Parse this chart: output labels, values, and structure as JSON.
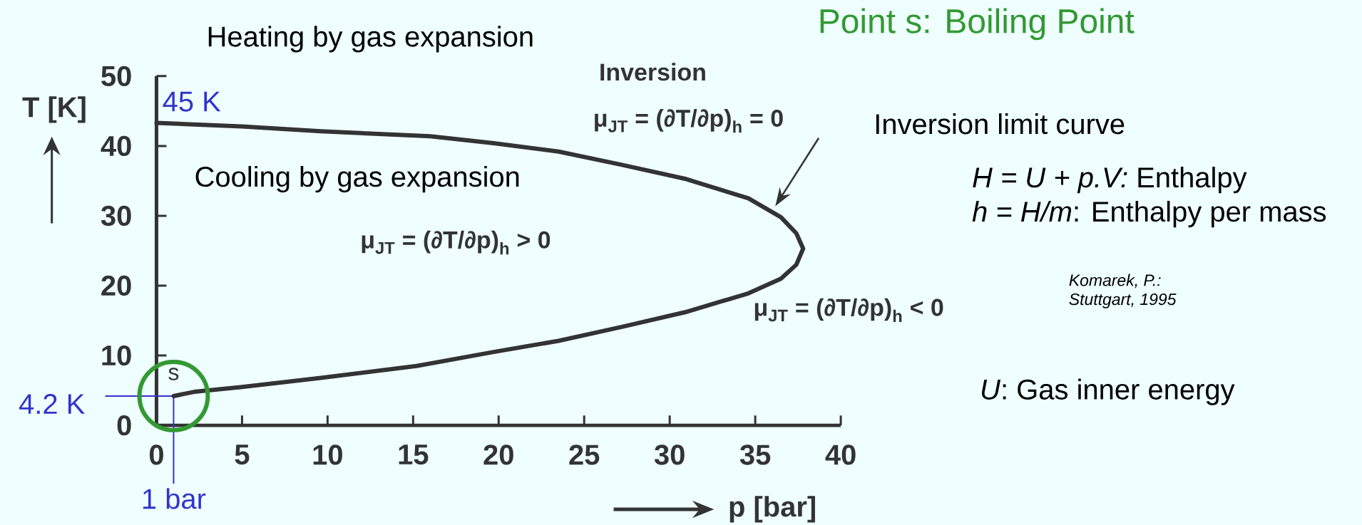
{
  "chart_data": {
    "type": "line",
    "title": "Point s: Boiling Point",
    "xlabel": "p [bar]",
    "ylabel": "T [K]",
    "xlim": [
      0,
      40
    ],
    "ylim": [
      0,
      50
    ],
    "xticks": [
      0,
      5,
      10,
      15,
      20,
      25,
      30,
      35,
      40
    ],
    "yticks": [
      0,
      10,
      20,
      30,
      40,
      50
    ],
    "series": [
      {
        "color": "#333333",
        "x": [
          0,
          5,
          9.6,
          16,
          19.7,
          23.5,
          27.2,
          30.9,
          34.6,
          36.5,
          37.4,
          37.8,
          37.4,
          36.5,
          34.6,
          30.9,
          27.2,
          23.5,
          19.7,
          15.2,
          9.6,
          5,
          2.2,
          1
        ],
        "values": [
          43.3,
          42.8,
          42.1,
          41.4,
          40.4,
          39.2,
          37.3,
          35.3,
          32.5,
          29.8,
          27.5,
          25.3,
          23.0,
          21.0,
          18.9,
          16.2,
          14.1,
          12.1,
          10.5,
          8.5,
          6.8,
          5.5,
          4.8,
          4.2
        ]
      },
      {
        "type": "scatter",
        "name": "s",
        "color": "#339933",
        "marker": "circle",
        "x": [
          1
        ],
        "values": [
          4.2
        ]
      }
    ],
    "ref_lines": [
      {
        "axis": "y",
        "value": 4.2,
        "label": "4.2 K",
        "color": "#3333cc"
      },
      {
        "axis": "x",
        "value": 1,
        "label": "1 bar",
        "color": "#3333cc"
      }
    ],
    "annotations": [
      "Heating by gas expansion",
      "Cooling by gas expansion",
      "Inversion",
      "μ$_{JT}$ = (∂T/∂p)$_{h}$ = 0",
      "Inversion limit curve",
      "μ$_{JT}$ = (∂T/∂p)$_{h}$ > 0",
      "μ$_{JT}$ = (∂T/∂p)$_{h}$ < 0",
      "*H = U + p.V:* Enthalpy",
      "*h = H/m*: Enthalpy per mass",
      "Komarek, P.:",
      "Stuttgart, 1995",
      "*U*: Gas inner energy",
      "45 K"
    ]
  }
}
